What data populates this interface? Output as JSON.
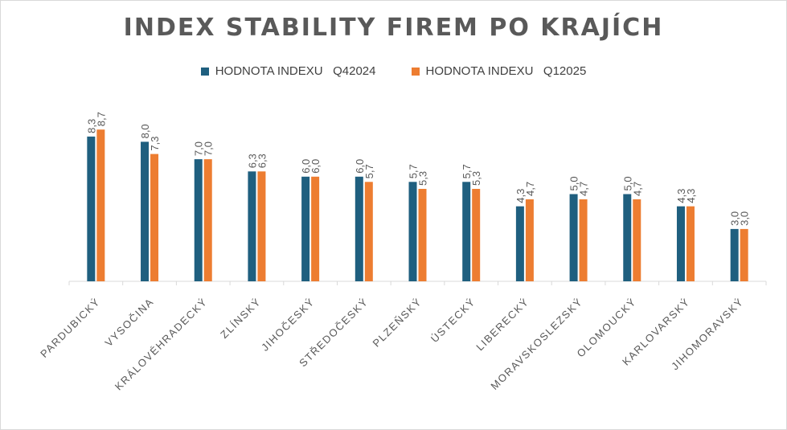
{
  "chart_data": {
    "type": "bar",
    "title": "INDEX STABILITY FIREM PO KRAJÍCH",
    "categories": [
      "PARDUBICKÝ",
      "VYSOČINA",
      "KRÁLOVÉHRADECKÝ",
      "ZLÍNSKÝ",
      "JIHOČESKÝ",
      "STŘEDOČESKÝ",
      "PLZEŇSKÝ",
      "ÚSTECKÝ",
      "LIBERECKÝ",
      "MORAVSKOSLEZSKÝ",
      "OLOMOUCKÝ",
      "KARLOVARSKÝ",
      "JIHOMORAVSKÝ"
    ],
    "series": [
      {
        "name": "HODNOTA INDEXU   Q42024",
        "color": "#1f5f7f",
        "values": [
          8.3,
          8.0,
          7.0,
          6.3,
          6.0,
          6.0,
          5.7,
          5.7,
          4.3,
          5.0,
          5.0,
          4.3,
          3.0
        ],
        "labels": [
          "8,3",
          "8,0",
          "7,0",
          "6,3",
          "6,0",
          "6,0",
          "5,7",
          "5,7",
          "4,3",
          "5,0",
          "5,0",
          "4,3",
          "3,0"
        ]
      },
      {
        "name": "HODNOTA INDEXU   Q12025",
        "color": "#ed7d31",
        "values": [
          8.7,
          7.3,
          7.0,
          6.3,
          6.0,
          5.7,
          5.3,
          5.3,
          4.7,
          4.7,
          4.7,
          4.3,
          3.0
        ],
        "labels": [
          "8,7",
          "7,3",
          "7,0",
          "6,3",
          "6,0",
          "5,7",
          "5,3",
          "5,3",
          "4,7",
          "4,7",
          "4,7",
          "4,3",
          "3,0"
        ]
      }
    ],
    "xlabel": "",
    "ylabel": "",
    "ylim": [
      0,
      10
    ],
    "grid": false,
    "legend_position": "top-center"
  }
}
